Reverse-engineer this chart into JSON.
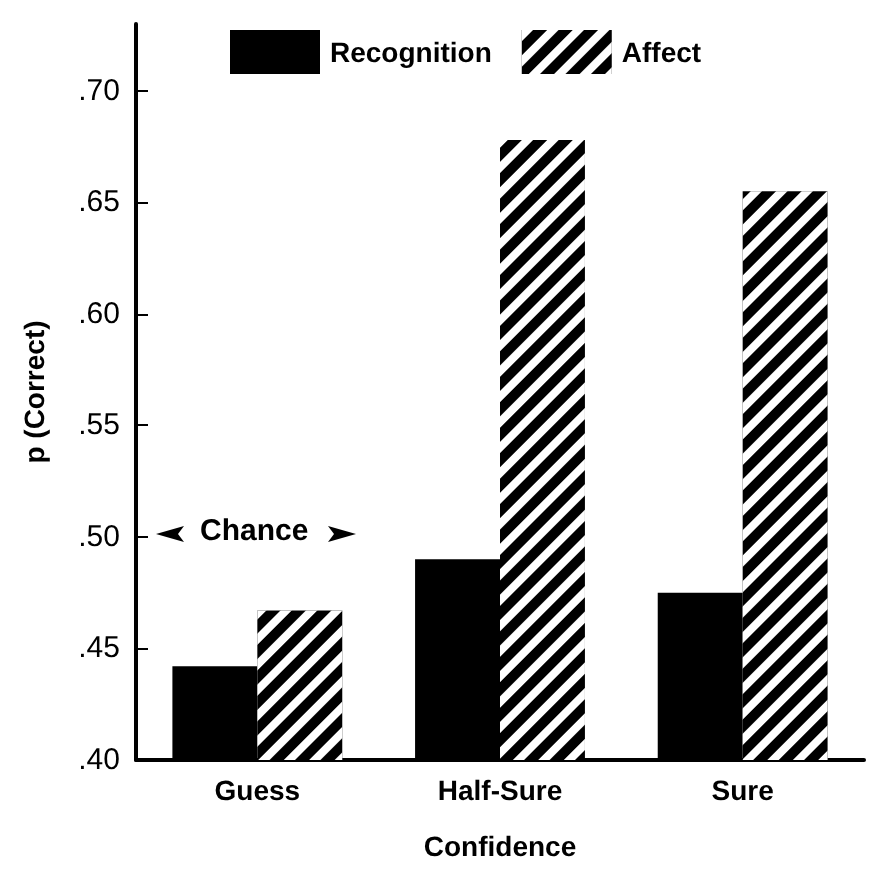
{
  "chart_data": {
    "type": "bar",
    "xlabel": "Confidence",
    "ylabel": "p (Correct)",
    "categories": [
      "Guess",
      "Half-Sure",
      "Sure"
    ],
    "series": [
      {
        "name": "Recognition",
        "color": "#000000",
        "values": [
          0.442,
          0.49,
          0.475
        ]
      },
      {
        "name": "Affect",
        "color": "#000000",
        "values": [
          0.467,
          0.678,
          0.655
        ]
      }
    ],
    "ylim": [
      0.4,
      0.73
    ],
    "yticks": [
      {
        "value": 0.4,
        "label": ".40"
      },
      {
        "value": 0.45,
        "label": ".45"
      },
      {
        "value": 0.5,
        "label": ".50"
      },
      {
        "value": 0.55,
        "label": ".55"
      },
      {
        "value": 0.6,
        "label": ".60"
      },
      {
        "value": 0.65,
        "label": ".65"
      },
      {
        "value": 0.7,
        "label": ".70"
      }
    ],
    "annotations": [
      "Chance"
    ],
    "grid": false,
    "legend": "top"
  }
}
